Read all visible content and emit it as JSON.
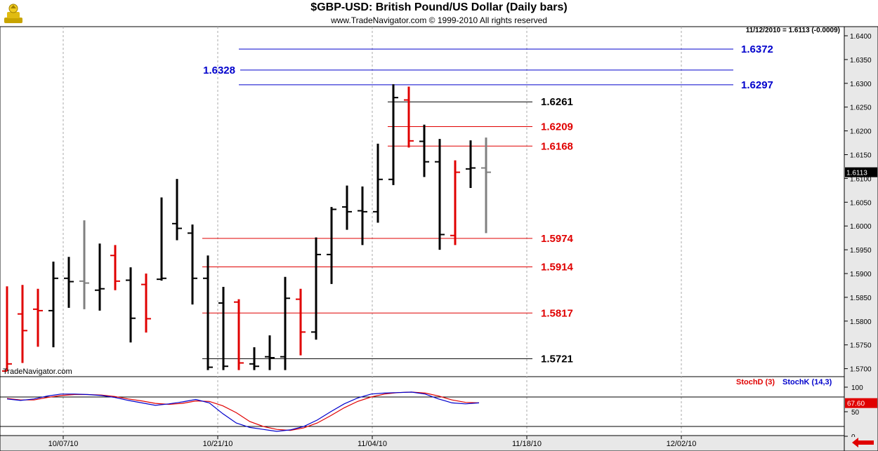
{
  "header": {
    "title": "$GBP-USD:  British Pound/US Dollar  (Daily bars)",
    "subtitle": "www.TradeNavigator.com © 1999-2010 All rights reserved",
    "last_quote": "11/12/2010 = 1.6113 (-0.0009)",
    "watermark": "TradeNavigator.com"
  },
  "chart_data": [
    {
      "type": "ohlc",
      "title": "$GBP-USD:  British Pound/US Dollar  (Daily bars)",
      "ylim": [
        1.5695,
        1.6415
      ],
      "y_ticks": [
        "1.6400",
        "1.6350",
        "1.6300",
        "1.6250",
        "1.6200",
        "1.6150",
        "1.6100",
        "1.6050",
        "1.6000",
        "1.5950",
        "1.5900",
        "1.5850",
        "1.5800",
        "1.5750",
        "1.5700"
      ],
      "x_ticks": [
        "10/07/10",
        "10/21/10",
        "11/04/10",
        "11/18/10",
        "12/02/10"
      ],
      "last_price_tag": "1.6113",
      "up_color": "#000000",
      "down_color": "#e00000",
      "last_bar_color": "#808080",
      "bars": [
        {
          "o": 1.5695,
          "h": 1.5873,
          "l": 1.5695,
          "c": 1.571,
          "dir": "down"
        },
        {
          "o": 1.5815,
          "h": 1.5876,
          "l": 1.5712,
          "c": 1.578,
          "dir": "down"
        },
        {
          "o": 1.5825,
          "h": 1.5868,
          "l": 1.5746,
          "c": 1.5822,
          "dir": "down"
        },
        {
          "o": 1.5822,
          "h": 1.5925,
          "l": 1.5745,
          "c": 1.589,
          "dir": "up"
        },
        {
          "o": 1.589,
          "h": 1.5935,
          "l": 1.5828,
          "c": 1.5883,
          "dir": "up"
        },
        {
          "o": 1.5884,
          "h": 1.6012,
          "l": 1.5825,
          "c": 1.588,
          "dir": "flat"
        },
        {
          "o": 1.5865,
          "h": 1.5963,
          "l": 1.5822,
          "c": 1.5868,
          "dir": "up"
        },
        {
          "o": 1.5938,
          "h": 1.596,
          "l": 1.5865,
          "c": 1.5884,
          "dir": "down"
        },
        {
          "o": 1.5886,
          "h": 1.5913,
          "l": 1.5755,
          "c": 1.5806,
          "dir": "up"
        },
        {
          "o": 1.5877,
          "h": 1.59,
          "l": 1.5776,
          "c": 1.5805,
          "dir": "down"
        },
        {
          "o": 1.5888,
          "h": 1.606,
          "l": 1.5885,
          "c": 1.589,
          "dir": "up"
        },
        {
          "o": 1.6005,
          "h": 1.6099,
          "l": 1.597,
          "c": 1.5995,
          "dir": "up"
        },
        {
          "o": 1.5985,
          "h": 1.6003,
          "l": 1.5835,
          "c": 1.589,
          "dir": "up"
        },
        {
          "o": 1.589,
          "h": 1.5938,
          "l": 1.5697,
          "c": 1.5703,
          "dir": "up"
        },
        {
          "o": 1.5838,
          "h": 1.5872,
          "l": 1.5697,
          "c": 1.5705,
          "dir": "up"
        },
        {
          "o": 1.584,
          "h": 1.5846,
          "l": 1.5697,
          "c": 1.5712,
          "dir": "down"
        },
        {
          "o": 1.571,
          "h": 1.5745,
          "l": 1.5697,
          "c": 1.5705,
          "dir": "up"
        },
        {
          "o": 1.5725,
          "h": 1.577,
          "l": 1.5697,
          "c": 1.5723,
          "dir": "up"
        },
        {
          "o": 1.5725,
          "h": 1.5893,
          "l": 1.5697,
          "c": 1.5848,
          "dir": "up"
        },
        {
          "o": 1.5846,
          "h": 1.5868,
          "l": 1.5728,
          "c": 1.5777,
          "dir": "down"
        },
        {
          "o": 1.5777,
          "h": 1.5976,
          "l": 1.5761,
          "c": 1.594,
          "dir": "up"
        },
        {
          "o": 1.594,
          "h": 1.604,
          "l": 1.5878,
          "c": 1.6035,
          "dir": "up"
        },
        {
          "o": 1.604,
          "h": 1.6085,
          "l": 1.5992,
          "c": 1.603,
          "dir": "up"
        },
        {
          "o": 1.6032,
          "h": 1.6083,
          "l": 1.596,
          "c": 1.603,
          "dir": "up"
        },
        {
          "o": 1.603,
          "h": 1.6173,
          "l": 1.6007,
          "c": 1.6098,
          "dir": "up"
        },
        {
          "o": 1.6098,
          "h": 1.6298,
          "l": 1.6086,
          "c": 1.627,
          "dir": "up"
        },
        {
          "o": 1.6265,
          "h": 1.6293,
          "l": 1.6165,
          "c": 1.6179,
          "dir": "down"
        },
        {
          "o": 1.6178,
          "h": 1.6213,
          "l": 1.6103,
          "c": 1.6135,
          "dir": "up"
        },
        {
          "o": 1.6135,
          "h": 1.6183,
          "l": 1.595,
          "c": 1.5982,
          "dir": "up"
        },
        {
          "o": 1.598,
          "h": 1.6138,
          "l": 1.596,
          "c": 1.6113,
          "dir": "down"
        },
        {
          "o": 1.612,
          "h": 1.618,
          "l": 1.608,
          "c": 1.6122,
          "dir": "up"
        },
        {
          "o": 1.6122,
          "h": 1.6186,
          "l": 1.5985,
          "c": 1.6113,
          "dir": "flat"
        }
      ],
      "levels": [
        {
          "value": 1.6372,
          "label": "1.6372",
          "color": "#0000cc",
          "side": "right",
          "x_start_bar": 14
        },
        {
          "value": 1.6328,
          "label": "1.6328",
          "color": "#0000cc",
          "side": "left",
          "x_start_bar": 14
        },
        {
          "value": 1.6297,
          "label": "1.6297",
          "color": "#0000cc",
          "side": "right",
          "x_start_bar": 14
        },
        {
          "value": 1.6261,
          "label": "1.6261",
          "color": "#000000",
          "side": "mid",
          "x_start_bar": 25
        },
        {
          "value": 1.6209,
          "label": "1.6209",
          "color": "#e00000",
          "side": "mid",
          "x_start_bar": 25
        },
        {
          "value": 1.6168,
          "label": "1.6168",
          "color": "#e00000",
          "side": "mid",
          "x_start_bar": 25
        },
        {
          "value": 1.5974,
          "label": "1.5974",
          "color": "#e00000",
          "side": "mid",
          "x_start_bar": 13
        },
        {
          "value": 1.5914,
          "label": "1.5914",
          "color": "#e00000",
          "side": "mid",
          "x_start_bar": 13
        },
        {
          "value": 1.5817,
          "label": "1.5817",
          "color": "#e00000",
          "side": "mid",
          "x_start_bar": 13
        },
        {
          "value": 1.5721,
          "label": "1.5721",
          "color": "#000000",
          "side": "mid",
          "x_start_bar": 13
        }
      ]
    },
    {
      "type": "line",
      "ylim": [
        -10,
        110
      ],
      "y_ticks": [
        "100",
        "50",
        "0"
      ],
      "reference_lines": [
        80,
        20
      ],
      "last_value_tag": "67.60",
      "series": [
        {
          "name": "StochD (3)",
          "color": "#e00000",
          "values": [
            77,
            74,
            74,
            79,
            83,
            85,
            85,
            84,
            81,
            76,
            72,
            67,
            65,
            67,
            72,
            71,
            62,
            48,
            30,
            20,
            14,
            12,
            17,
            27,
            42,
            58,
            71,
            80,
            86,
            89,
            90,
            88,
            82,
            74,
            69,
            68
          ]
        },
        {
          "name": "StochK (14,3)",
          "color": "#0000cc",
          "values": [
            76,
            73,
            76,
            82,
            86,
            86,
            85,
            83,
            79,
            73,
            68,
            63,
            66,
            70,
            75,
            68,
            46,
            27,
            18,
            14,
            10,
            13,
            20,
            33,
            50,
            66,
            78,
            86,
            88,
            89,
            90,
            86,
            76,
            68,
            66,
            68
          ]
        }
      ]
    }
  ]
}
